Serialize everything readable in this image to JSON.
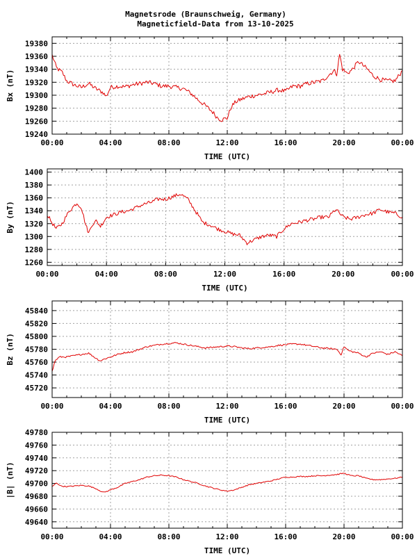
{
  "title": {
    "line1": "Magnetsrode (Braunschweig, Germany)",
    "line2": "Magneticfield-Data from 13-10-2025"
  },
  "colors": {
    "series": "#e00000",
    "grid": "#a0a0a0",
    "frame": "#000000"
  },
  "chart_data": [
    {
      "type": "line",
      "ylabel": "Bx (nT)",
      "xlabel": "TIME (UTC)",
      "xlim": [
        0,
        24
      ],
      "xticks": [
        "00:00",
        "04:00",
        "08:00",
        "12:00",
        "16:00",
        "20:00",
        "00:00"
      ],
      "ylim": [
        19240,
        19390
      ],
      "yticks": [
        19240,
        19260,
        19280,
        19300,
        19320,
        19340,
        19360,
        19380
      ],
      "grid": true,
      "noise": 3.5,
      "series": [
        {
          "x": [
            0,
            0.3,
            0.7,
            1.0,
            1.5,
            2.0,
            2.5,
            3.0,
            3.5,
            3.7,
            4.0,
            4.5,
            5.0,
            5.5,
            6.0,
            6.5,
            7.0,
            7.5,
            8.0,
            8.5,
            9.0,
            9.5,
            10.0,
            10.5,
            11.0,
            11.3,
            11.6,
            12.0,
            12.3,
            12.6,
            13.0,
            13.5,
            14.0,
            14.5,
            15.0,
            15.5,
            16.0,
            16.5,
            17.0,
            17.5,
            18.0,
            18.5,
            19.0,
            19.3,
            19.5,
            19.7,
            19.9,
            20.2,
            20.5,
            21.0,
            21.3,
            21.6,
            22.0,
            22.5,
            23.0,
            23.5,
            24.0
          ],
          "y": [
            19362,
            19342,
            19335,
            19322,
            19316,
            19312,
            19318,
            19310,
            19304,
            19298,
            19312,
            19314,
            19313,
            19316,
            19318,
            19320,
            19318,
            19314,
            19314,
            19312,
            19310,
            19303,
            19293,
            19284,
            19274,
            19266,
            19262,
            19265,
            19283,
            19290,
            19294,
            19298,
            19300,
            19302,
            19305,
            19308,
            19306,
            19314,
            19314,
            19318,
            19320,
            19322,
            19332,
            19338,
            19333,
            19363,
            19340,
            19334,
            19338,
            19352,
            19346,
            19340,
            19330,
            19324,
            19322,
            19322,
            19338
          ]
        }
      ]
    },
    {
      "type": "line",
      "ylabel": "By (nT)",
      "xlabel": "TIME (UTC)",
      "xlim": [
        0,
        24
      ],
      "xticks": [
        "00:00",
        "04:00",
        "08:00",
        "12:00",
        "16:00",
        "20:00",
        "00:00"
      ],
      "ylim": [
        1255,
        1405
      ],
      "yticks": [
        1260,
        1280,
        1300,
        1320,
        1340,
        1360,
        1380,
        1400
      ],
      "grid": true,
      "noise": 3,
      "series": [
        {
          "x": [
            0,
            0.3,
            0.6,
            1.0,
            1.5,
            2.0,
            2.3,
            2.6,
            2.8,
            3.0,
            3.3,
            3.6,
            4.0,
            4.5,
            5.0,
            5.5,
            6.0,
            6.5,
            7.0,
            7.5,
            8.0,
            8.5,
            9.0,
            9.5,
            10.0,
            10.5,
            11.0,
            11.5,
            12.0,
            12.5,
            13.0,
            13.5,
            14.0,
            14.5,
            15.0,
            15.5,
            16.0,
            16.5,
            17.0,
            17.5,
            18.0,
            18.5,
            19.0,
            19.5,
            20.0,
            20.5,
            21.0,
            21.5,
            22.0,
            22.5,
            23.0,
            23.5,
            24.0
          ],
          "y": [
            1334,
            1322,
            1312,
            1320,
            1340,
            1352,
            1345,
            1318,
            1305,
            1318,
            1324,
            1316,
            1330,
            1334,
            1338,
            1340,
            1345,
            1350,
            1353,
            1358,
            1358,
            1362,
            1366,
            1358,
            1340,
            1322,
            1318,
            1312,
            1308,
            1304,
            1302,
            1290,
            1295,
            1300,
            1302,
            1300,
            1312,
            1320,
            1322,
            1325,
            1327,
            1330,
            1330,
            1342,
            1330,
            1327,
            1330,
            1334,
            1336,
            1342,
            1338,
            1336,
            1330
          ]
        }
      ]
    },
    {
      "type": "line",
      "ylabel": "Bz (nT)",
      "xlabel": "TIME (UTC)",
      "xlim": [
        0,
        24
      ],
      "xticks": [
        "00:00",
        "04:00",
        "08:00",
        "12:00",
        "16:00",
        "20:00",
        "00:00"
      ],
      "ylim": [
        45705,
        45855
      ],
      "yticks": [
        45720,
        45740,
        45760,
        45780,
        45800,
        45820,
        45840
      ],
      "grid": true,
      "noise": 1.2,
      "series": [
        {
          "x": [
            0,
            0.2,
            0.5,
            1.0,
            1.5,
            2.0,
            2.5,
            3.0,
            3.3,
            3.6,
            4.0,
            4.5,
            5.0,
            5.5,
            6.0,
            6.5,
            7.0,
            7.5,
            8.0,
            8.5,
            9.0,
            9.5,
            10.0,
            10.5,
            11.0,
            11.5,
            12.0,
            12.5,
            13.0,
            13.5,
            14.0,
            14.5,
            15.0,
            15.5,
            16.0,
            16.5,
            17.0,
            17.5,
            18.0,
            18.5,
            19.0,
            19.5,
            19.8,
            20.0,
            20.3,
            20.6,
            21.0,
            21.5,
            22.0,
            22.5,
            23.0,
            23.5,
            24.0
          ],
          "y": [
            45745,
            45762,
            45768,
            45768,
            45770,
            45772,
            45774,
            45766,
            45762,
            45765,
            45768,
            45772,
            45775,
            45776,
            45780,
            45784,
            45786,
            45788,
            45789,
            45790,
            45788,
            45786,
            45784,
            45782,
            45783,
            45784,
            45785,
            45784,
            45782,
            45781,
            45782,
            45783,
            45784,
            45786,
            45787,
            45788,
            45788,
            45786,
            45784,
            45782,
            45781,
            45780,
            45772,
            45784,
            45778,
            45776,
            45774,
            45768,
            45774,
            45776,
            45772,
            45776,
            45770
          ]
        }
      ]
    },
    {
      "type": "line",
      "ylabel": "|B| (nT)",
      "xlabel": "TIME (UTC)",
      "xlim": [
        0,
        24
      ],
      "xticks": [
        "00:00",
        "04:00",
        "08:00",
        "12:00",
        "16:00",
        "20:00",
        "00:00"
      ],
      "ylim": [
        49630,
        49780
      ],
      "yticks": [
        49640,
        49660,
        49680,
        49700,
        49720,
        49740,
        49760,
        49780
      ],
      "grid": true,
      "noise": 0.8,
      "series": [
        {
          "x": [
            0,
            0.3,
            0.6,
            1.0,
            1.5,
            2.0,
            2.5,
            3.0,
            3.5,
            3.8,
            4.0,
            4.5,
            5.0,
            5.5,
            6.0,
            6.5,
            7.0,
            7.5,
            8.0,
            8.5,
            9.0,
            9.5,
            10.0,
            10.5,
            11.0,
            11.5,
            12.0,
            12.5,
            13.0,
            13.5,
            14.0,
            14.5,
            15.0,
            15.5,
            16.0,
            16.5,
            17.0,
            17.5,
            18.0,
            18.5,
            19.0,
            19.5,
            20.0,
            20.5,
            21.0,
            21.5,
            22.0,
            22.5,
            23.0,
            23.5,
            24.0
          ],
          "y": [
            49695,
            49701,
            49696,
            49695,
            49696,
            49697,
            49696,
            49692,
            49686,
            49688,
            49690,
            49694,
            49700,
            49703,
            49706,
            49710,
            49712,
            49713,
            49712,
            49710,
            49706,
            49703,
            49700,
            49696,
            49693,
            49690,
            49688,
            49690,
            49694,
            49698,
            49700,
            49702,
            49704,
            49707,
            49710,
            49710,
            49711,
            49711,
            49712,
            49712,
            49713,
            49714,
            49716,
            49712,
            49712,
            49708,
            49706,
            49706,
            49707,
            49708,
            49710
          ]
        }
      ]
    }
  ]
}
